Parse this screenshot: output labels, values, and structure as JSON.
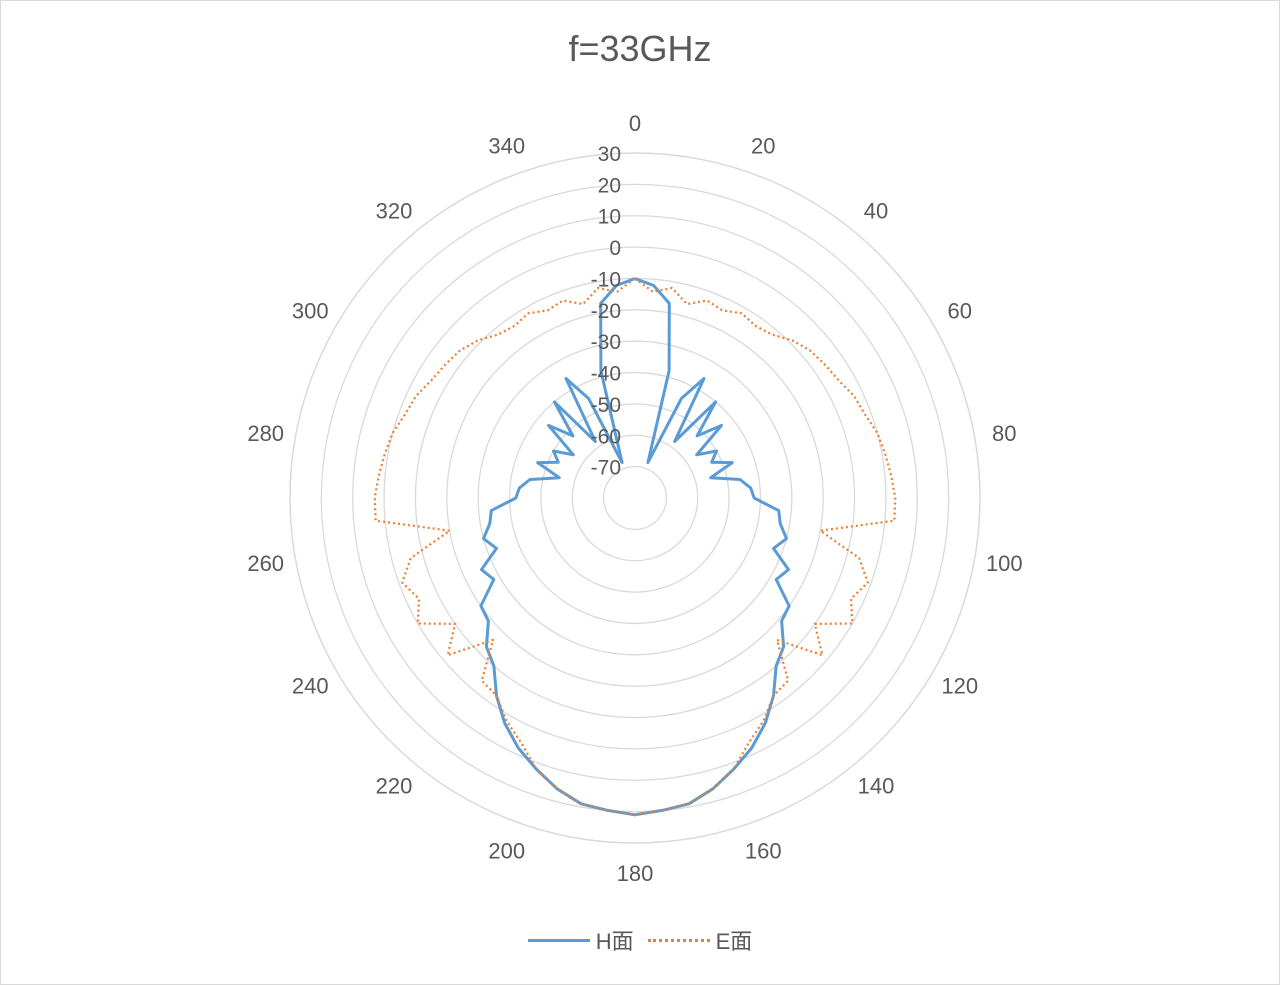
{
  "chart_data": {
    "type": "polar-line",
    "title": "f=33GHz",
    "angle_ticks": [
      "0",
      "20",
      "40",
      "60",
      "80",
      "100",
      "120",
      "140",
      "160",
      "180",
      "200",
      "220",
      "240",
      "260",
      "280",
      "300",
      "320",
      "340"
    ],
    "angle_values": [
      0,
      20,
      40,
      60,
      80,
      100,
      120,
      140,
      160,
      180,
      200,
      220,
      240,
      260,
      280,
      300,
      320,
      340
    ],
    "radial_ticks": [
      "30",
      "20",
      "10",
      "0",
      "-10",
      "-20",
      "-30",
      "-40",
      "-50",
      "-60",
      "-70"
    ],
    "radial_values": [
      30,
      20,
      10,
      0,
      -10,
      -20,
      -30,
      -40,
      -50,
      -60,
      -70
    ],
    "rlim": [
      -80,
      30
    ],
    "grid": true,
    "legend_position": "bottom",
    "colors": {
      "h": "#5b9bd5",
      "e": "#ed7d31",
      "grid": "#d9d9d9",
      "text": "#595959"
    },
    "series": [
      {
        "name": "H面",
        "style": "solid",
        "angles": [
          0,
          5,
          10,
          15,
          20,
          25,
          30,
          35,
          40,
          45,
          50,
          55,
          60,
          65,
          70,
          75,
          80,
          85,
          90,
          95,
          100,
          105,
          110,
          115,
          120,
          125,
          130,
          135,
          140,
          145,
          150,
          155,
          160,
          165,
          170,
          175,
          180,
          185,
          190,
          195,
          200,
          205,
          210,
          215,
          220,
          225,
          230,
          235,
          240,
          245,
          250,
          255,
          260,
          265,
          270,
          275,
          280,
          285,
          290,
          295,
          300,
          305,
          310,
          315,
          320,
          325,
          330,
          335,
          340,
          345,
          350,
          355
        ],
        "values": [
          -10,
          -12,
          -17,
          -38,
          -68,
          -45,
          -36,
          -58,
          -40,
          -52,
          -44,
          -56,
          -50,
          -53,
          -47,
          -55,
          -46,
          -43,
          -42,
          -34,
          -33,
          -30,
          -33,
          -26,
          -28,
          -20,
          -19,
          -13,
          -10,
          -3,
          3,
          8,
          12,
          16,
          19,
          20,
          21,
          20,
          19,
          16,
          12,
          8,
          3,
          -3,
          -10,
          -13,
          -19,
          -20,
          -28,
          -26,
          -33,
          -30,
          -33,
          -34,
          -42,
          -43,
          -46,
          -55,
          -47,
          -53,
          -50,
          -56,
          -44,
          -52,
          -40,
          -58,
          -36,
          -45,
          -68,
          -38,
          -17,
          -12
        ]
      },
      {
        "name": "E面",
        "style": "dotted",
        "angles": [
          0,
          5,
          10,
          15,
          20,
          25,
          30,
          35,
          40,
          45,
          50,
          55,
          60,
          65,
          70,
          75,
          80,
          85,
          90,
          95,
          100,
          105,
          110,
          115,
          120,
          125,
          130,
          135,
          140,
          145,
          150,
          155,
          160,
          165,
          170,
          175,
          180,
          185,
          190,
          195,
          200,
          205,
          210,
          215,
          220,
          225,
          230,
          235,
          240,
          245,
          250,
          255,
          260,
          265,
          270,
          275,
          280,
          285,
          290,
          295,
          300,
          305,
          310,
          315,
          320,
          325,
          330,
          335,
          340,
          345,
          350,
          355
        ],
        "values": [
          -10,
          -14,
          -12,
          -16,
          -13,
          -14,
          -12,
          -13,
          -12,
          -9,
          -7,
          -6,
          -5,
          -3,
          -2,
          0,
          1,
          2,
          3,
          3,
          -20,
          -6,
          -1,
          -4,
          0,
          -10,
          -2,
          -16,
          -4,
          -3,
          2,
          6,
          12,
          16,
          19,
          20,
          21,
          20,
          19,
          16,
          12,
          6,
          2,
          -3,
          -4,
          -16,
          -2,
          -10,
          0,
          -4,
          -1,
          -6,
          -20,
          3,
          3,
          2,
          1,
          0,
          -2,
          -3,
          -5,
          -6,
          -7,
          -9,
          -12,
          -13,
          -12,
          -14,
          -13,
          -16,
          -12,
          -14
        ]
      }
    ]
  }
}
